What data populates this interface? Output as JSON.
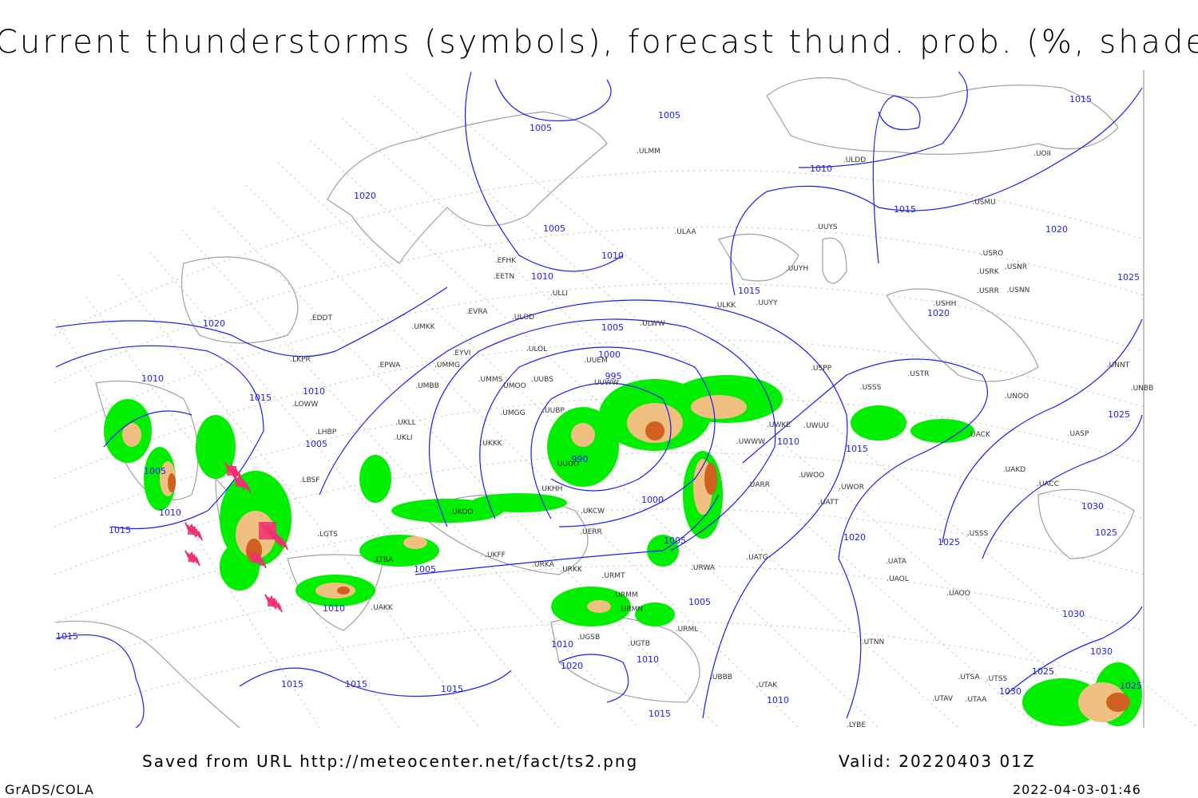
{
  "title": "Current thunderstorms (symbols), forecast thund. prob. (%, shaded)",
  "footer": {
    "source": "Saved from URL http://meteocenter.net/fact/ts2.png",
    "valid": "Valid: 20220403 01Z",
    "software": "GrADS/COLA",
    "timestamp": "2022-04-03-01:46"
  },
  "colors": {
    "isobar": "#1a1aff",
    "coastline": "#a0a0a0",
    "prob_low": "#00ee00",
    "prob_mid": "#f0c080",
    "prob_high": "#d06020",
    "prob_max": "#a02010",
    "thunderstorm_symbol": "#f03070"
  },
  "isobar_labels": [
    "1005",
    "1005",
    "1020",
    "1010",
    "1015",
    "1005",
    "1010",
    "1010",
    "1015",
    "1020",
    "1025",
    "1020",
    "1020",
    "1005",
    "1000",
    "995",
    "1010",
    "1015",
    "1010",
    "1005",
    "990",
    "1010",
    "1015",
    "1025",
    "1005",
    "1010",
    "1015",
    "1000",
    "1005",
    "1020",
    "1025",
    "1030",
    "1025",
    "1005",
    "1005",
    "1010",
    "1015",
    "1010",
    "1020",
    "1010",
    "1015",
    "1015",
    "1015",
    "1015",
    "1010",
    "1030",
    "1030",
    "1025",
    "1030",
    "1025",
    "1015"
  ],
  "stations": [
    "ULMM",
    "ULDD",
    "UOII",
    "USMU",
    "UUYS",
    "ULAA",
    "USRO",
    "USRK",
    "USNR",
    "USRR",
    "USNN",
    "UUYH",
    "USHH",
    "ULKK",
    "UUYY",
    "EFHK",
    "EETN",
    "ULLI",
    "EVRA",
    "ULOD",
    "EDDT",
    "UMKK",
    "ULWW",
    "EYVI",
    "ULOL",
    "UUEM",
    "UMMG",
    "EPWA",
    "LKPR",
    "UMMS",
    "UMOO",
    "UUBS",
    "UUWW",
    "USPP",
    "USSS",
    "USTR",
    "UNNT",
    "UNBB",
    "UNOO",
    "UMBB",
    "LOWW",
    "UMGG",
    "UUBP",
    "UWKE",
    "UWUU",
    "UACK",
    "UASP",
    "LHBP",
    "UKLL",
    "UKLI",
    "UKKK",
    "UWWW",
    "UUOO",
    "UARR",
    "UWOO",
    "UWOR",
    "UATT",
    "UKHH",
    "UKOO",
    "UKCW",
    "UERR",
    "UKFF",
    "URKA",
    "URKK",
    "URMT",
    "URMM",
    "URMN",
    "URML",
    "URWA",
    "UATG",
    "UATA",
    "UAOL",
    "UAOO",
    "UTNN",
    "UGSB",
    "UGTB",
    "UBBB",
    "UTAK",
    "UTSA",
    "UTSS",
    "UTAV",
    "UTAA",
    "LYBE",
    "LBSF",
    "LGTS",
    "LTBA",
    "UAKK",
    "UACC",
    "UAKD",
    "USSS"
  ]
}
